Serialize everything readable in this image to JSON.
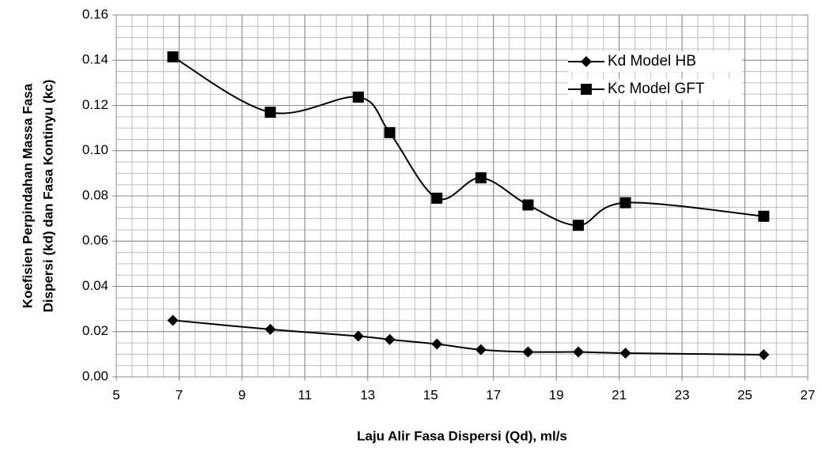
{
  "chart_data": {
    "type": "scatter",
    "xlabel": "Laju Alir Fasa Dispersi (Qd), ml/s",
    "ylabel": [
      "Koefisien Perpindahan Massa Fasa",
      "Dispersi (kd) dan Fasa Kontinyu (kc)"
    ],
    "xlim": [
      5,
      27
    ],
    "xticks": [
      5,
      7,
      9,
      11,
      13,
      15,
      17,
      19,
      21,
      23,
      25,
      27
    ],
    "ylim": [
      0,
      0.16
    ],
    "yticks": [
      {
        "value": 0,
        "label": "0.00"
      },
      {
        "value": 0.02,
        "label": "0.02"
      },
      {
        "value": 0.04,
        "label": "0.04"
      },
      {
        "value": 0.06,
        "label": "0.06"
      },
      {
        "value": 0.08,
        "label": "0.08"
      },
      {
        "value": 0.1,
        "label": "0.10"
      },
      {
        "value": 0.12,
        "label": "0.12"
      },
      {
        "value": 0.14,
        "label": "0.14"
      },
      {
        "value": 0.16,
        "label": "0.16"
      }
    ],
    "grid": true,
    "minor_grid": {
      "x": 0.5,
      "y": 0.005
    },
    "smooth": true,
    "legend": "upper right",
    "series": [
      {
        "name": "Kd Model HB",
        "color": "#000000",
        "marker": "diamond",
        "x": [
          6.8,
          9.9,
          12.7,
          13.7,
          15.2,
          16.6,
          18.1,
          19.7,
          21.2,
          25.6
        ],
        "values": [
          0.025,
          0.021,
          0.018,
          0.0165,
          0.0145,
          0.012,
          0.011,
          0.011,
          0.0105,
          0.0098
        ]
      },
      {
        "name": "Kc Model GFT",
        "color": "#000000",
        "marker": "square",
        "x": [
          6.8,
          9.9,
          12.7,
          13.7,
          15.2,
          16.6,
          18.1,
          19.7,
          21.2,
          25.6
        ],
        "values": [
          0.1415,
          0.117,
          0.1237,
          0.108,
          0.079,
          0.088,
          0.076,
          0.067,
          0.077,
          0.071
        ]
      }
    ]
  }
}
